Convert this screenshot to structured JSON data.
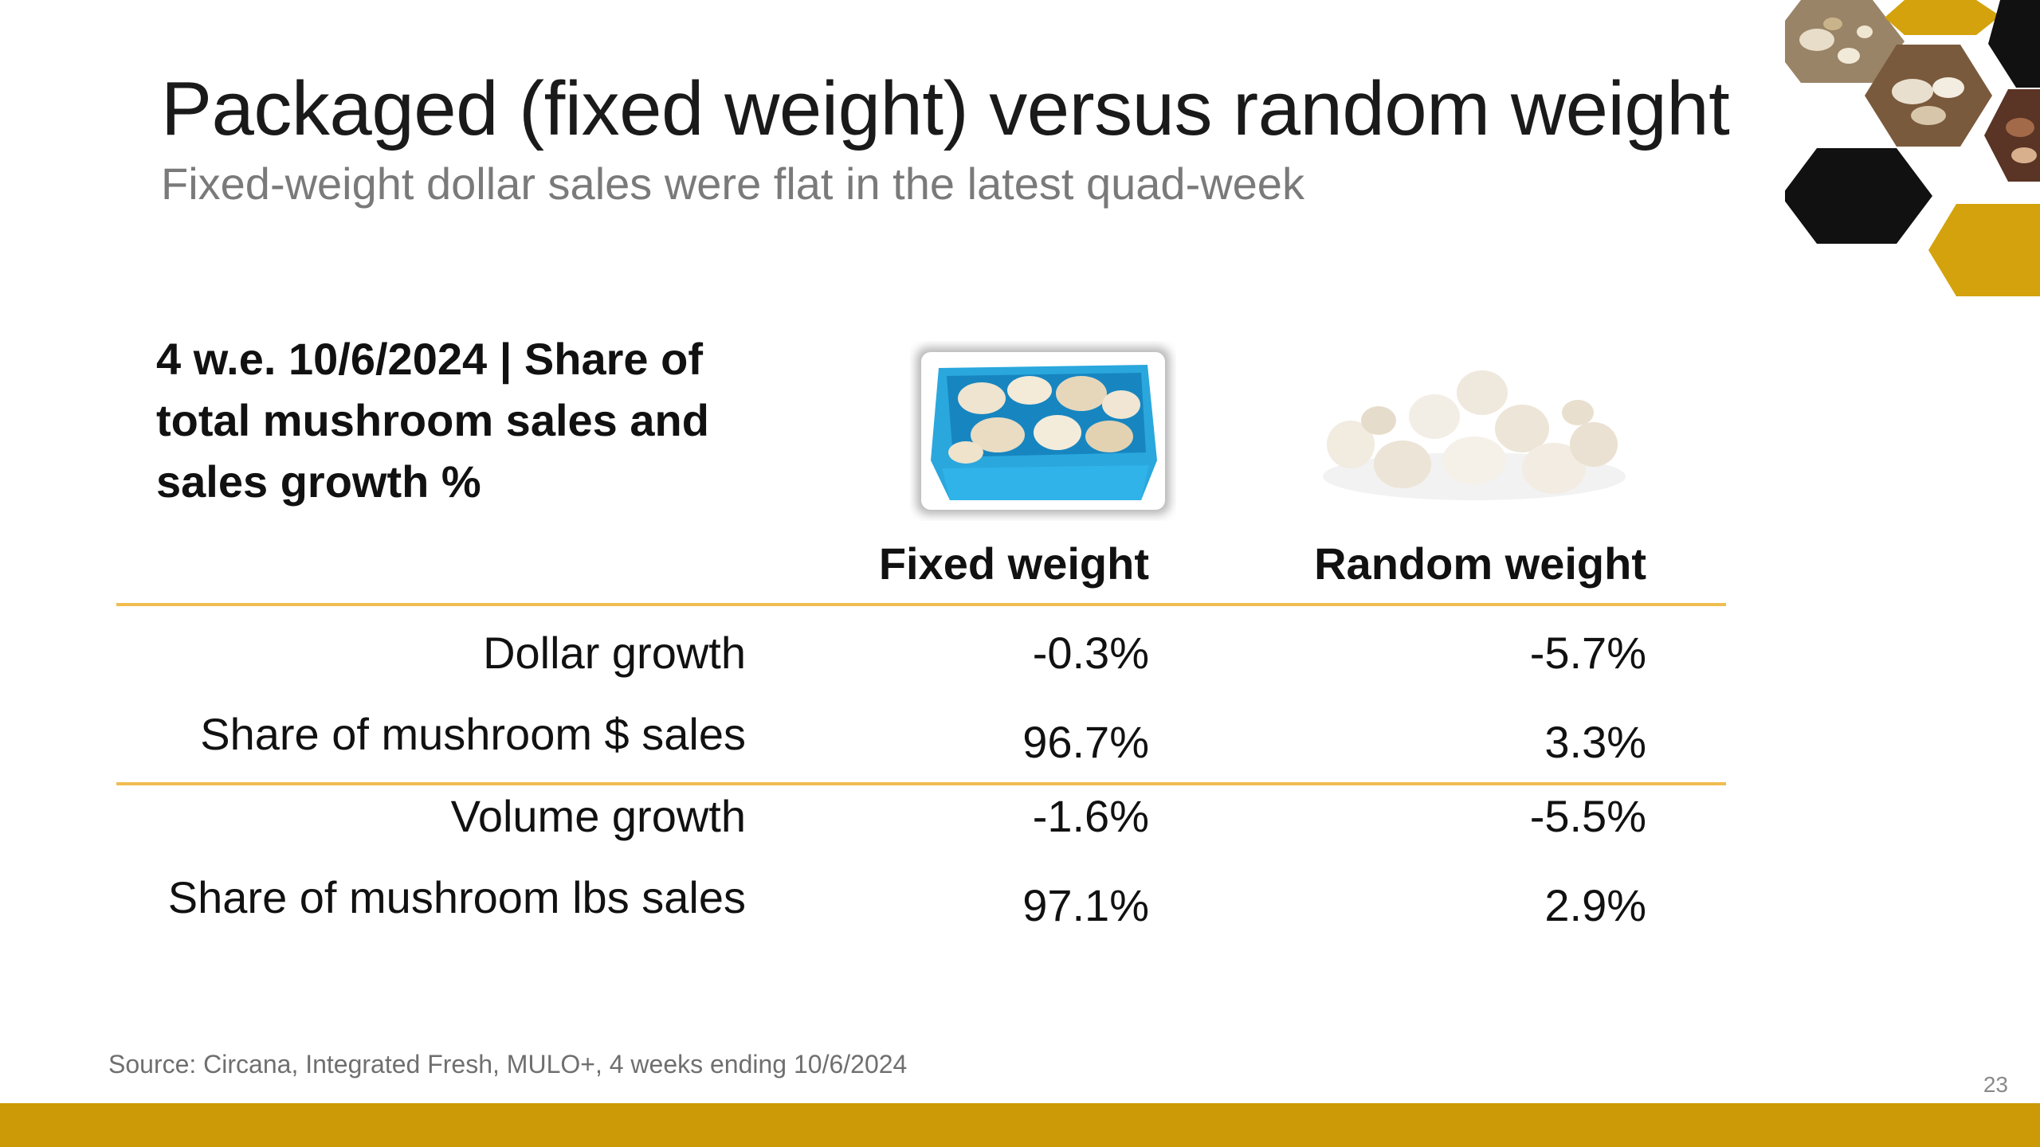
{
  "slide": {
    "title": "Packaged (fixed weight) versus random weight",
    "subtitle": "Fixed-weight dollar sales were flat in the latest quad-week",
    "row_header": "4 w.e. 10/6/2024 | Share of total mushroom sales and sales growth %",
    "source": "Source: Circana, Integrated Fresh, MULO+, 4 weeks ending 10/6/2024",
    "page_number": "23"
  },
  "table": {
    "columns": [
      "Fixed weight",
      "Random weight"
    ],
    "rows": [
      {
        "label": "Dollar growth",
        "values": [
          "-0.3%",
          "-5.7%"
        ]
      },
      {
        "label": "Share of mushroom $ sales",
        "values": [
          "96.7%",
          "3.3%"
        ]
      },
      {
        "label": "Volume growth",
        "values": [
          "-1.6%",
          "-5.5%"
        ]
      },
      {
        "label": "Share of mushroom lbs sales",
        "values": [
          "97.1%",
          "2.9%"
        ]
      }
    ]
  },
  "colors": {
    "accent_gold": "#cc9a06",
    "rule_line": "#f0bd50",
    "hexagon_dark": "#111111",
    "carton_blue": "#2aa7dd"
  },
  "icons": {
    "fixed_weight_image": "mushroom-carton-image",
    "random_weight_image": "loose-mushrooms-image",
    "decoration": "hexagon-photo-collage"
  }
}
